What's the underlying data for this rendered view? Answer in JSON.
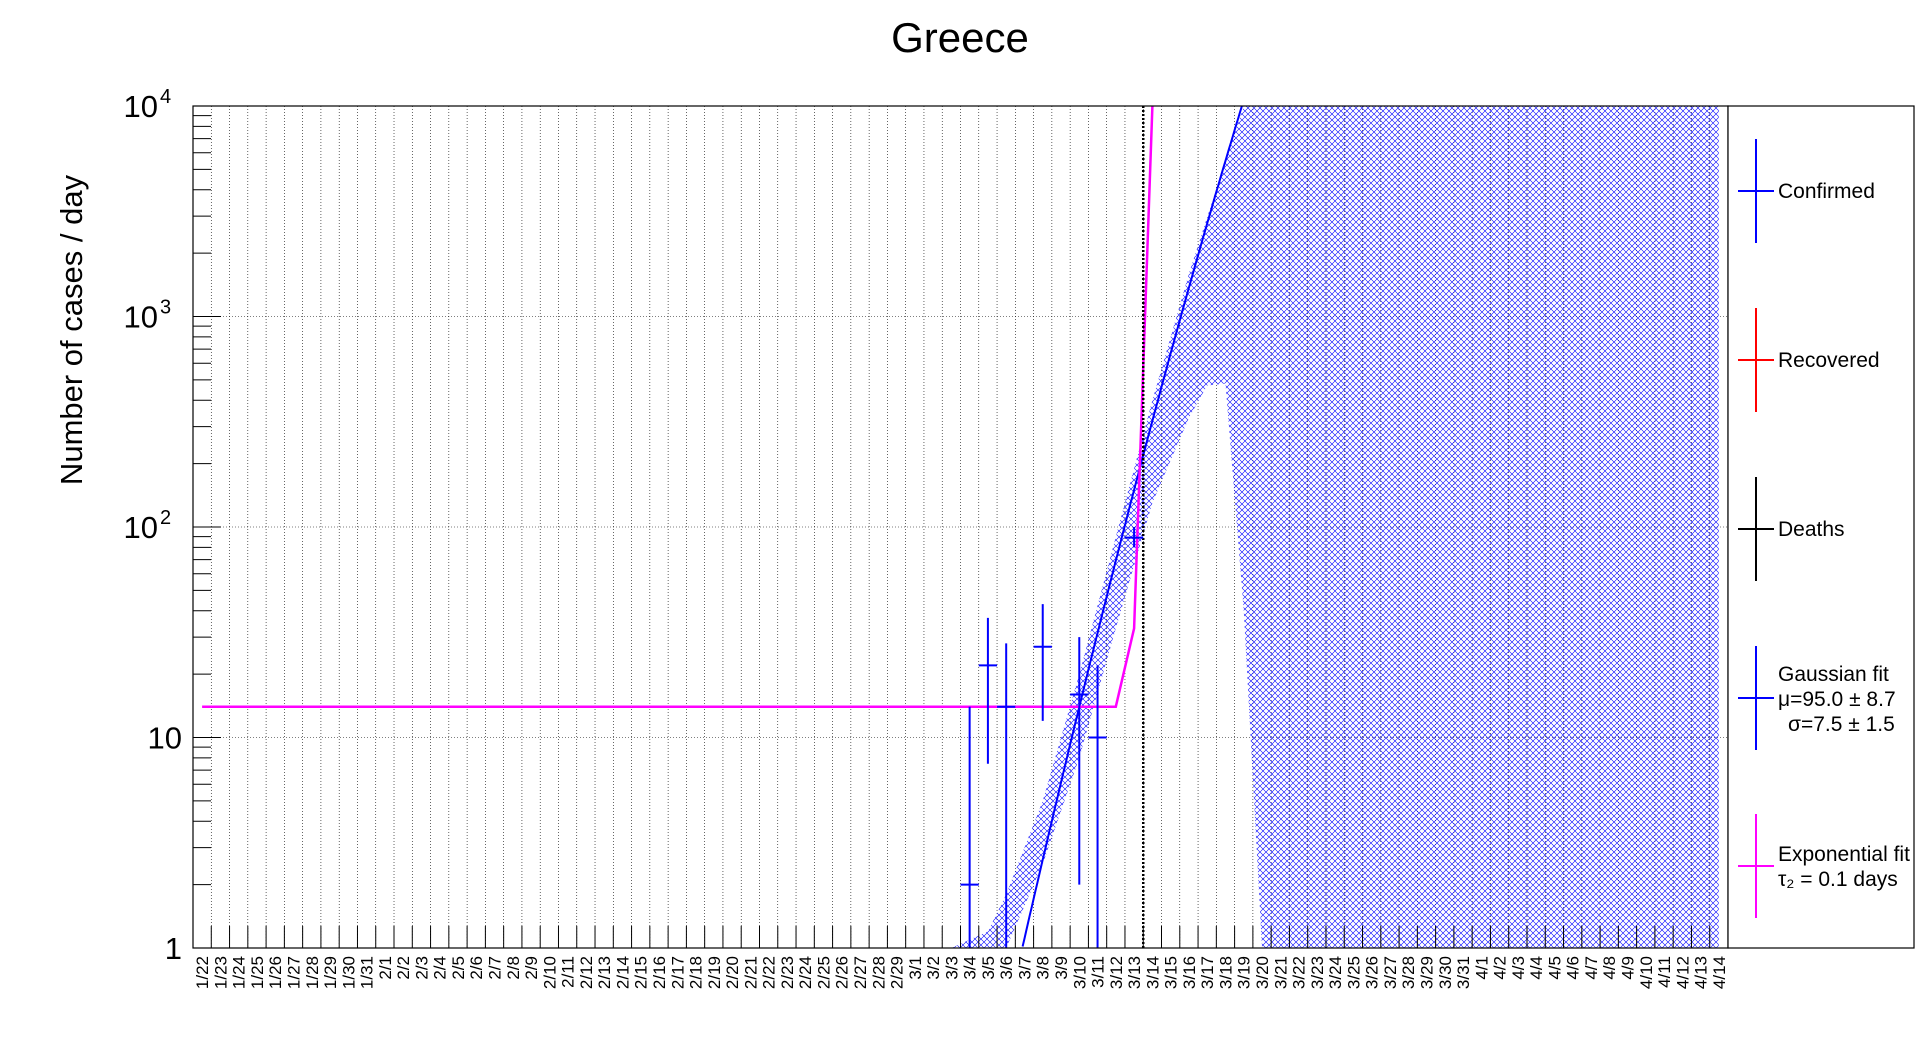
{
  "chart_data": {
    "type": "scatter",
    "title": "Greece",
    "ylabel": "Number of cases / day",
    "xlabel": "",
    "yscale": "log",
    "ylim": [
      1,
      10000
    ],
    "y_ticks": [
      {
        "value": 1,
        "base": "1",
        "exp": ""
      },
      {
        "value": 10,
        "base": "10",
        "exp": ""
      },
      {
        "value": 100,
        "base": "10",
        "exp": "2"
      },
      {
        "value": 1000,
        "base": "10",
        "exp": "3"
      },
      {
        "value": 10000,
        "base": "10",
        "exp": "4"
      }
    ],
    "grid": true,
    "legend_position": "right",
    "dates": [
      "1/22",
      "1/23",
      "1/24",
      "1/25",
      "1/26",
      "1/27",
      "1/28",
      "1/29",
      "1/30",
      "1/31",
      "2/1",
      "2/2",
      "2/3",
      "2/4",
      "2/5",
      "2/6",
      "2/7",
      "2/8",
      "2/9",
      "2/10",
      "2/11",
      "2/12",
      "2/13",
      "2/14",
      "2/15",
      "2/16",
      "2/17",
      "2/18",
      "2/19",
      "2/20",
      "2/21",
      "2/22",
      "2/23",
      "2/24",
      "2/25",
      "2/26",
      "2/27",
      "2/28",
      "2/29",
      "3/1",
      "3/2",
      "3/3",
      "3/4",
      "3/5",
      "3/6",
      "3/7",
      "3/8",
      "3/9",
      "3/10",
      "3/11",
      "3/12",
      "3/13",
      "3/14",
      "3/15",
      "3/16",
      "3/17",
      "3/18",
      "3/19",
      "3/20",
      "3/21",
      "3/22",
      "3/23",
      "3/24",
      "3/25",
      "3/26",
      "3/27",
      "3/28",
      "3/29",
      "3/30",
      "3/31",
      "4/1",
      "4/2",
      "4/3",
      "4/4",
      "4/5",
      "4/6",
      "4/7",
      "4/8",
      "4/9",
      "4/10",
      "4/11",
      "4/12",
      "4/13",
      "4/14"
    ],
    "series": [
      {
        "name": "Confirmed",
        "color": "#0000ff",
        "points": [
          {
            "x": "3/4",
            "y": 2,
            "ylow": 1,
            "yhigh": 14
          },
          {
            "x": "3/5",
            "y": 22,
            "ylow": 7.5,
            "yhigh": 37
          },
          {
            "x": "3/6",
            "y": 14,
            "ylow": 1,
            "yhigh": 28
          },
          {
            "x": "3/8",
            "y": 27,
            "ylow": 12,
            "yhigh": 43
          },
          {
            "x": "3/10",
            "y": 16,
            "ylow": 2,
            "yhigh": 30
          },
          {
            "x": "3/11",
            "y": 10,
            "ylow": 1,
            "yhigh": 22
          },
          {
            "x": "3/13",
            "y": 89,
            "ylow": 80,
            "yhigh": 100
          }
        ]
      },
      {
        "name": "Recovered",
        "color": "#ff0000",
        "points": []
      },
      {
        "name": "Deaths",
        "color": "#000000",
        "points": []
      }
    ],
    "fits": [
      {
        "name": "Gaussian fit",
        "params": [
          "μ=95.0 ± 8.7",
          "σ=7.5 ± 1.5"
        ],
        "color": "#0000ff",
        "mu": 95.0,
        "sigma": 7.5
      },
      {
        "name": "Exponential fit",
        "params": [
          "τ₂ = 0.1 days"
        ],
        "color": "#ff00ff",
        "curve": [
          {
            "x": "1/22",
            "y": 14
          },
          {
            "x": "3/11",
            "y": 14
          },
          {
            "x": "3/12",
            "y": 14
          },
          {
            "x": "3/13",
            "y": 33
          },
          {
            "x": "3/14",
            "y": 10000
          }
        ]
      }
    ],
    "band": {
      "color": "#0000ff",
      "lower": [
        {
          "x": "3/3",
          "y": 1
        },
        {
          "x": "3/6",
          "y": 1
        },
        {
          "x": "3/8",
          "y": 2.5
        },
        {
          "x": "3/10",
          "y": 8
        },
        {
          "x": "3/12",
          "y": 33
        },
        {
          "x": "3/14",
          "y": 130
        },
        {
          "x": "3/16",
          "y": 330
        },
        {
          "x": "3/17",
          "y": 470
        },
        {
          "x": "3/18",
          "y": 480
        },
        {
          "x": "3/19",
          "y": 40
        },
        {
          "x": "3/20",
          "y": 1
        },
        {
          "x": "4/14",
          "y": 1
        }
      ],
      "upper": [
        {
          "x": "3/3",
          "y": 1
        },
        {
          "x": "3/5",
          "y": 1.2
        },
        {
          "x": "3/6",
          "y": 1.8
        },
        {
          "x": "3/8",
          "y": 5
        },
        {
          "x": "3/10",
          "y": 20
        },
        {
          "x": "3/12",
          "y": 90
        },
        {
          "x": "3/14",
          "y": 400
        },
        {
          "x": "3/16",
          "y": 1600
        },
        {
          "x": "3/18",
          "y": 5500
        },
        {
          "x": "3/19",
          "y": 10000
        },
        {
          "x": "4/14",
          "y": 10000
        }
      ]
    },
    "vertical_line": {
      "x": "3/13",
      "style": "dotted",
      "color": "#000000"
    }
  }
}
